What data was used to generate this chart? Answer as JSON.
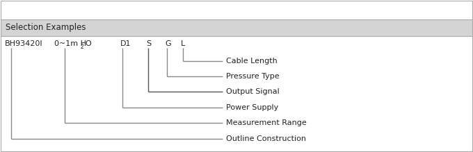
{
  "title": "Selection Examples",
  "title_bg": "#d4d4d4",
  "title_border": "#aaaaaa",
  "labels": [
    "BH93420I",
    "0~1m H₂O",
    "D1",
    "S",
    "G",
    "L"
  ],
  "branch_labels": [
    "Cable Length",
    "Pressure Type",
    "Output Signal",
    "Power Supply",
    "Measurement Range",
    "Outline Construction"
  ],
  "line_color": "#888888",
  "line_color_dark": "#555555",
  "line_width": 1.0,
  "font_size": 8.0,
  "title_font_size": 8.5,
  "bg_color": "#ffffff",
  "text_color": "#222222"
}
